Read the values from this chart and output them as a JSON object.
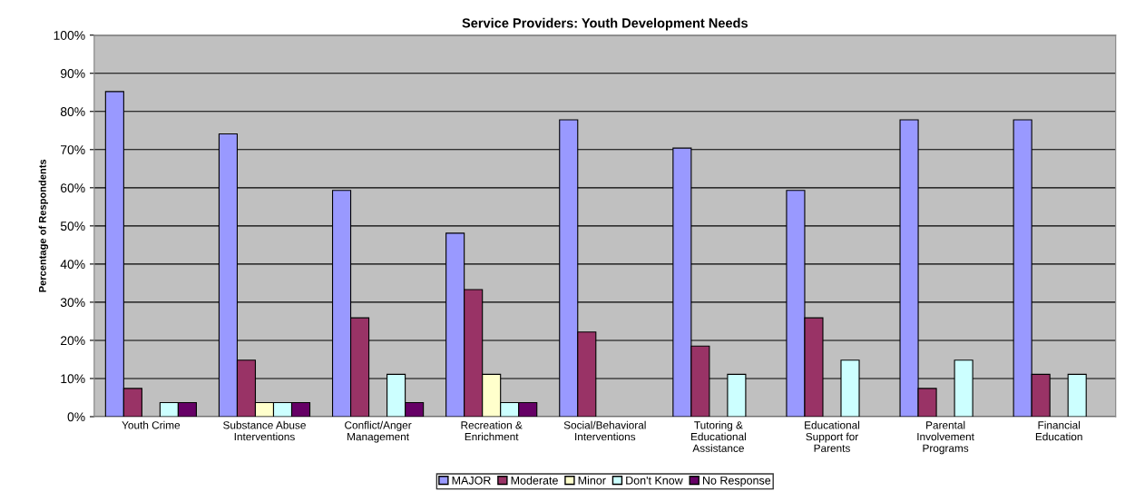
{
  "chart_data": {
    "type": "bar",
    "title": "Service Providers: Youth Development Needs",
    "ylabel": "Percentage of Respondents",
    "categories": [
      "Youth Crime",
      "Substance Abuse\nInterventions",
      "Conflict/Anger\nManagement",
      "Recreation &\nEnrichment",
      "Social/Behavioral\nInterventions",
      "Tutoring &\nEducational\nAssistance",
      "Educational\nSupport for\nParents",
      "Parental\nInvolvement\nPrograms",
      "Financial\nEducation"
    ],
    "series": [
      {
        "name": "MAJOR",
        "color": "#9999ff",
        "values": [
          85.2,
          74.1,
          59.3,
          48.1,
          77.8,
          70.4,
          59.3,
          77.8,
          77.8
        ]
      },
      {
        "name": "Moderate",
        "color": "#993366",
        "values": [
          7.4,
          14.8,
          25.9,
          33.3,
          22.2,
          18.5,
          25.9,
          7.4,
          11.1
        ]
      },
      {
        "name": "Minor",
        "color": "#ffffcc",
        "values": [
          null,
          3.7,
          null,
          11.1,
          null,
          null,
          null,
          null,
          null
        ]
      },
      {
        "name": "Don't Know",
        "color": "#ccffff",
        "values": [
          3.7,
          3.7,
          11.1,
          3.7,
          null,
          11.1,
          14.8,
          14.8,
          11.1
        ]
      },
      {
        "name": "No Response",
        "color": "#660066",
        "values": [
          3.7,
          3.7,
          3.7,
          3.7,
          null,
          null,
          null,
          null,
          null
        ]
      }
    ],
    "ylim": [
      0,
      100
    ],
    "yticks": [
      {
        "value": 0,
        "label": "0%"
      },
      {
        "value": 10,
        "label": "10%"
      },
      {
        "value": 20,
        "label": "20%"
      },
      {
        "value": 30,
        "label": "30%"
      },
      {
        "value": 40,
        "label": "40%"
      },
      {
        "value": 50,
        "label": "50%"
      },
      {
        "value": 60,
        "label": "60%"
      },
      {
        "value": 70,
        "label": "70%"
      },
      {
        "value": 80,
        "label": "80%"
      },
      {
        "value": 90,
        "label": "90%"
      },
      {
        "value": 100,
        "label": "100%"
      }
    ],
    "grid": "y",
    "legend": "bottom"
  }
}
